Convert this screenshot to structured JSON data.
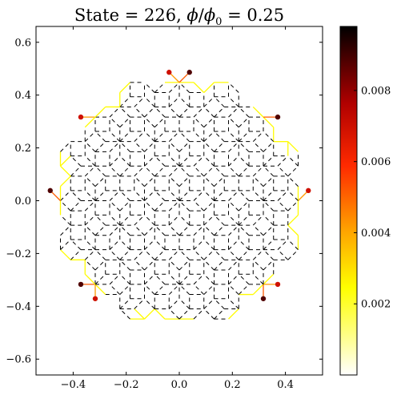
{
  "chart_data": {
    "type": "scatter",
    "title": "State = 226, ϕ/ϕ₀ = 0.25",
    "title_parts": {
      "prefix": "State = 226, ",
      "phi": "ϕ",
      "slash": "/",
      "phi0": "ϕ",
      "sub0": "0",
      "suffix": " = 0.25"
    },
    "xlabel": "",
    "ylabel": "",
    "xlim": [
      -0.54,
      0.54
    ],
    "ylim": [
      -0.66,
      0.66
    ],
    "x_ticks": [
      -0.4,
      -0.2,
      0.0,
      0.2,
      0.4
    ],
    "x_tick_labels": [
      "−0.4",
      "−0.2",
      "0.0",
      "0.2",
      "0.4"
    ],
    "y_ticks": [
      -0.6,
      -0.4,
      -0.2,
      0.0,
      0.2,
      0.4,
      0.6
    ],
    "y_tick_labels": [
      "−0.6",
      "−0.4",
      "−0.2",
      "0.0",
      "0.2",
      "0.4",
      "0.6"
    ],
    "lattice": "octagonal quasicrystal (dodecagon-shaped patch)",
    "patch_radius": 0.5,
    "grid": false,
    "colormap": "afmhot_r",
    "colorbar": {
      "min": 0.0,
      "max": 0.0098,
      "ticks": [
        0.002,
        0.004,
        0.006,
        0.008
      ],
      "tick_labels": [
        "0.002",
        "0.004",
        "0.006",
        "0.008"
      ]
    },
    "colors": {
      "cmap_stops": [
        "#ffffff",
        "#ffff60",
        "#ffff00",
        "#ffa000",
        "#ff3000",
        "#b00000",
        "#000000"
      ],
      "edge_line": "#000000"
    }
  }
}
